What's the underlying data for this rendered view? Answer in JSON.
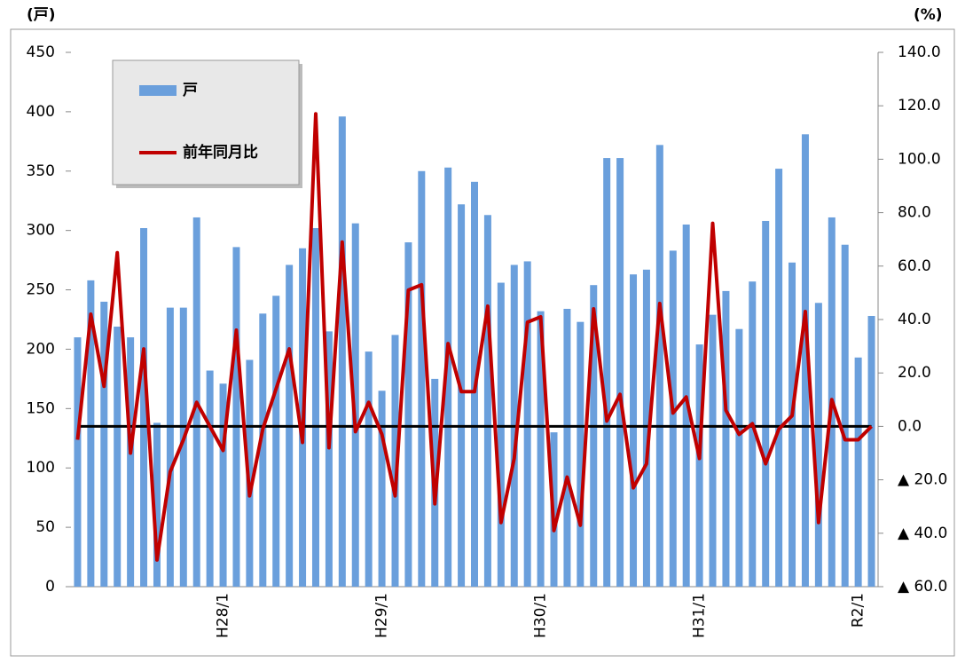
{
  "chart_data": {
    "type": "bar-line",
    "y_label": "(戸)",
    "y2_label": "(%)",
    "categories": [
      null,
      null,
      null,
      null,
      null,
      null,
      null,
      null,
      null,
      null,
      null,
      "H28/1",
      null,
      null,
      null,
      null,
      null,
      null,
      null,
      null,
      null,
      null,
      null,
      "H29/1",
      null,
      null,
      null,
      null,
      null,
      null,
      null,
      null,
      null,
      null,
      null,
      "H30/1",
      null,
      null,
      null,
      null,
      null,
      null,
      null,
      null,
      null,
      null,
      null,
      "H31/1",
      null,
      null,
      null,
      null,
      null,
      null,
      null,
      null,
      null,
      null,
      null,
      "R2/1",
      null
    ],
    "series": [
      {
        "name": "戸",
        "kind": "bar",
        "color": "#6a9fdc",
        "values": [
          210,
          258,
          240,
          219,
          210,
          302,
          138,
          235,
          235,
          311,
          182,
          171,
          286,
          191,
          230,
          245,
          271,
          285,
          302,
          215,
          396,
          306,
          198,
          165,
          212,
          290,
          350,
          175,
          353,
          322,
          341,
          313,
          256,
          271,
          274,
          232,
          130,
          234,
          223,
          254,
          361,
          361,
          263,
          267,
          372,
          283,
          305,
          204,
          229,
          249,
          217,
          257,
          308,
          352,
          273,
          381,
          239,
          311,
          288,
          193,
          228
        ]
      },
      {
        "name": "前年同月比",
        "kind": "line",
        "axis": "y2",
        "color": "#c00000",
        "values": [
          -5,
          42,
          15,
          65,
          -10,
          29,
          -50,
          -17,
          -5,
          9,
          0,
          -9,
          36,
          -26,
          -1,
          14,
          29,
          -6,
          117,
          -8,
          69,
          -2,
          9,
          -3,
          -26,
          51,
          53,
          -29,
          31,
          13,
          13,
          45,
          -36,
          -12,
          39,
          41,
          -39,
          -19,
          -37,
          44,
          2,
          12,
          -23,
          -14,
          46,
          5,
          11,
          -12,
          76,
          6,
          -3,
          1,
          -14,
          -1,
          4,
          43,
          -36,
          10,
          -5,
          -5,
          0
        ]
      }
    ],
    "ylim": [
      0,
      450
    ],
    "yticks": [
      0,
      50,
      100,
      150,
      200,
      250,
      300,
      350,
      400,
      450
    ],
    "y2lim": [
      -60,
      140
    ],
    "y2ticks": [
      {
        "value": -60,
        "label": "▲ 60.0"
      },
      {
        "value": -40,
        "label": "▲ 40.0"
      },
      {
        "value": -20,
        "label": "▲ 20.0"
      },
      {
        "value": 0,
        "label": "0.0"
      },
      {
        "value": 20,
        "label": "20.0"
      },
      {
        "value": 40,
        "label": "40.0"
      },
      {
        "value": 60,
        "label": "60.0"
      },
      {
        "value": 80,
        "label": "80.0"
      },
      {
        "value": 100,
        "label": "100.0"
      },
      {
        "value": 120,
        "label": "120.0"
      },
      {
        "value": 140,
        "label": "140.0"
      }
    ],
    "hline": {
      "axis": "y2",
      "value": 0,
      "color": "#000000"
    },
    "legend": "top-left"
  }
}
